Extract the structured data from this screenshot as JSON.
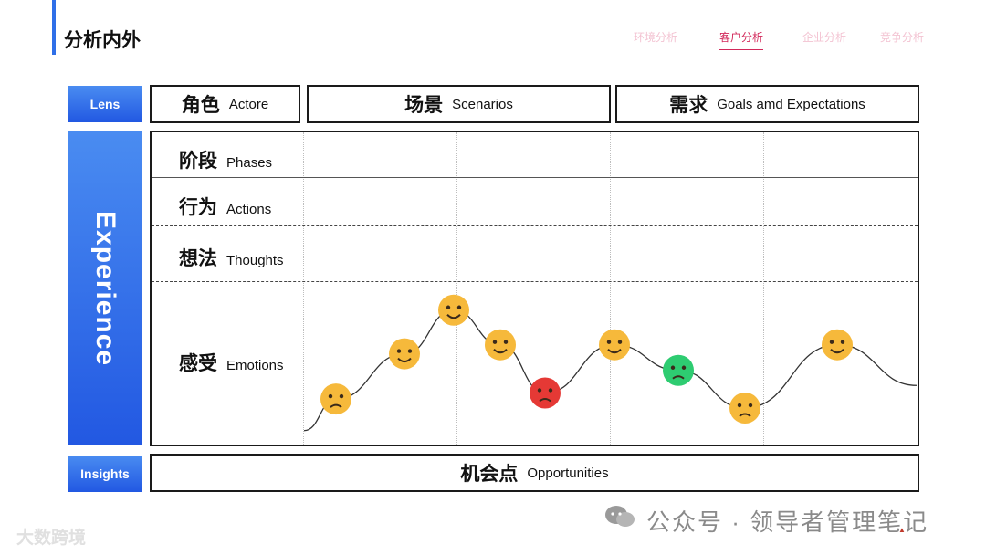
{
  "header": {
    "title": "分析内外",
    "nav": [
      "环境分析",
      "客户分析",
      "企业分析",
      "竞争分析"
    ],
    "active_nav": "客户分析"
  },
  "side_labels": {
    "lens": "Lens",
    "experience": "Experience",
    "insights": "Insights"
  },
  "lens_boxes": [
    {
      "cn": "角色",
      "en": "Actore"
    },
    {
      "cn": "场景",
      "en": "Scenarios"
    },
    {
      "cn": "需求",
      "en": "Goals  amd Expectations"
    }
  ],
  "rows": [
    {
      "cn": "阶段",
      "en": "Phases"
    },
    {
      "cn": "行为",
      "en": "Actions"
    },
    {
      "cn": "想法",
      "en": "Thoughts"
    },
    {
      "cn": "感受",
      "en": "Emotions"
    }
  ],
  "insights_box": {
    "cn": "机会点",
    "en": "Opportunities"
  },
  "emotions": [
    {
      "icon": "pleading-face-icon",
      "level": 0.26,
      "color": "#f6b93b"
    },
    {
      "icon": "neutral-face-icon",
      "level": 0.56,
      "color": "#f6b93b"
    },
    {
      "icon": "grinning-face-icon",
      "level": 0.85,
      "color": "#f6b93b"
    },
    {
      "icon": "screaming-face-icon",
      "level": 0.62,
      "color": "#f6b93b"
    },
    {
      "icon": "angry-face-icon",
      "level": 0.3,
      "color": "#e53935"
    },
    {
      "icon": "sweat-smile-face-icon",
      "level": 0.62,
      "color": "#f6b93b"
    },
    {
      "icon": "nauseated-face-icon",
      "level": 0.45,
      "color": "#2ecc71"
    },
    {
      "icon": "pensive-face-icon",
      "level": 0.2,
      "color": "#f6b93b"
    },
    {
      "icon": "confounded-face-icon",
      "level": 0.62,
      "color": "#f6b93b"
    }
  ],
  "watermarks": {
    "left": "大数跨境",
    "right": "公众号 · 领导者管理笔记"
  }
}
